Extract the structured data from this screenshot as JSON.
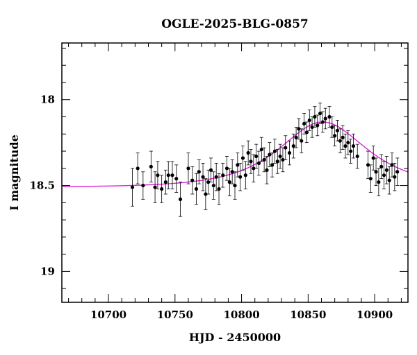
{
  "chart_data": {
    "type": "scatter",
    "title": "OGLE-2025-BLG-0857",
    "xlabel": "HJD - 2450000",
    "ylabel": "I magnitude",
    "xlim": [
      10665,
      10925
    ],
    "ylim": [
      19.18,
      17.67
    ],
    "y_inverted": true,
    "x_ticks": [
      10700,
      10750,
      10800,
      10850,
      10900
    ],
    "y_ticks": [
      18,
      18.5,
      19
    ],
    "y_tick_labels": [
      "18",
      "18.5",
      "19"
    ],
    "colors": {
      "points": "#000000",
      "model": "#dd22dd",
      "frame": "#000000"
    },
    "grid": false,
    "legend": "none",
    "model": {
      "name": "",
      "baseline_mag": 18.51,
      "peak_time": 10861,
      "peak_mag": 18.13,
      "t_range": [
        10665,
        10925
      ]
    },
    "series": [
      {
        "name": "",
        "marker": "filled-circle",
        "points": [
          [
            10718,
            18.51,
            0.11
          ],
          [
            10722,
            18.4,
            0.09
          ],
          [
            10726,
            18.5,
            0.08
          ],
          [
            10732,
            18.39,
            0.09
          ],
          [
            10735,
            18.51,
            0.09
          ],
          [
            10737,
            18.44,
            0.08
          ],
          [
            10740,
            18.52,
            0.08
          ],
          [
            10743,
            18.48,
            0.07
          ],
          [
            10745,
            18.44,
            0.08
          ],
          [
            10748,
            18.44,
            0.08
          ],
          [
            10751,
            18.46,
            0.08
          ],
          [
            10754,
            18.58,
            0.1
          ],
          [
            10760,
            18.4,
            0.09
          ],
          [
            10763,
            18.47,
            0.08
          ],
          [
            10766,
            18.52,
            0.09
          ],
          [
            10768,
            18.42,
            0.07
          ],
          [
            10771,
            18.45,
            0.08
          ],
          [
            10773,
            18.55,
            0.09
          ],
          [
            10775,
            18.48,
            0.07
          ],
          [
            10777,
            18.41,
            0.07
          ],
          [
            10779,
            18.5,
            0.08
          ],
          [
            10781,
            18.45,
            0.08
          ],
          [
            10783,
            18.52,
            0.09
          ],
          [
            10786,
            18.44,
            0.07
          ],
          [
            10789,
            18.4,
            0.07
          ],
          [
            10791,
            18.48,
            0.08
          ],
          [
            10793,
            18.42,
            0.07
          ],
          [
            10795,
            18.5,
            0.08
          ],
          [
            10797,
            18.38,
            0.07
          ],
          [
            10799,
            18.45,
            0.08
          ],
          [
            10801,
            18.34,
            0.07
          ],
          [
            10803,
            18.44,
            0.08
          ],
          [
            10805,
            18.31,
            0.07
          ],
          [
            10807,
            18.36,
            0.07
          ],
          [
            10809,
            18.4,
            0.08
          ],
          [
            10811,
            18.33,
            0.07
          ],
          [
            10813,
            18.37,
            0.07
          ],
          [
            10815,
            18.29,
            0.07
          ],
          [
            10817,
            18.35,
            0.07
          ],
          [
            10819,
            18.41,
            0.08
          ],
          [
            10821,
            18.32,
            0.07
          ],
          [
            10823,
            18.38,
            0.07
          ],
          [
            10825,
            18.3,
            0.07
          ],
          [
            10827,
            18.36,
            0.07
          ],
          [
            10829,
            18.33,
            0.07
          ],
          [
            10831,
            18.35,
            0.07
          ],
          [
            10833,
            18.28,
            0.07
          ],
          [
            10836,
            18.31,
            0.07
          ],
          [
            10839,
            18.27,
            0.07
          ],
          [
            10841,
            18.22,
            0.06
          ],
          [
            10843,
            18.17,
            0.06
          ],
          [
            10845,
            18.24,
            0.07
          ],
          [
            10847,
            18.14,
            0.06
          ],
          [
            10849,
            18.19,
            0.06
          ],
          [
            10851,
            18.12,
            0.06
          ],
          [
            10853,
            18.16,
            0.06
          ],
          [
            10855,
            18.1,
            0.06
          ],
          [
            10857,
            18.15,
            0.06
          ],
          [
            10859,
            18.08,
            0.06
          ],
          [
            10861,
            18.13,
            0.06
          ],
          [
            10863,
            18.11,
            0.06
          ],
          [
            10866,
            18.1,
            0.06
          ],
          [
            10868,
            18.16,
            0.06
          ],
          [
            10870,
            18.21,
            0.06
          ],
          [
            10872,
            18.18,
            0.06
          ],
          [
            10874,
            18.24,
            0.07
          ],
          [
            10876,
            18.22,
            0.07
          ],
          [
            10878,
            18.27,
            0.07
          ],
          [
            10880,
            18.25,
            0.07
          ],
          [
            10882,
            18.3,
            0.07
          ],
          [
            10884,
            18.27,
            0.07
          ],
          [
            10887,
            18.33,
            0.07
          ],
          [
            10895,
            18.38,
            0.08
          ],
          [
            10897,
            18.46,
            0.08
          ],
          [
            10899,
            18.34,
            0.07
          ],
          [
            10901,
            18.42,
            0.08
          ],
          [
            10903,
            18.48,
            0.08
          ],
          [
            10905,
            18.39,
            0.07
          ],
          [
            10907,
            18.44,
            0.08
          ],
          [
            10909,
            18.41,
            0.08
          ],
          [
            10911,
            18.47,
            0.08
          ],
          [
            10913,
            18.38,
            0.07
          ],
          [
            10915,
            18.45,
            0.08
          ],
          [
            10917,
            18.42,
            0.08
          ]
        ]
      }
    ]
  }
}
